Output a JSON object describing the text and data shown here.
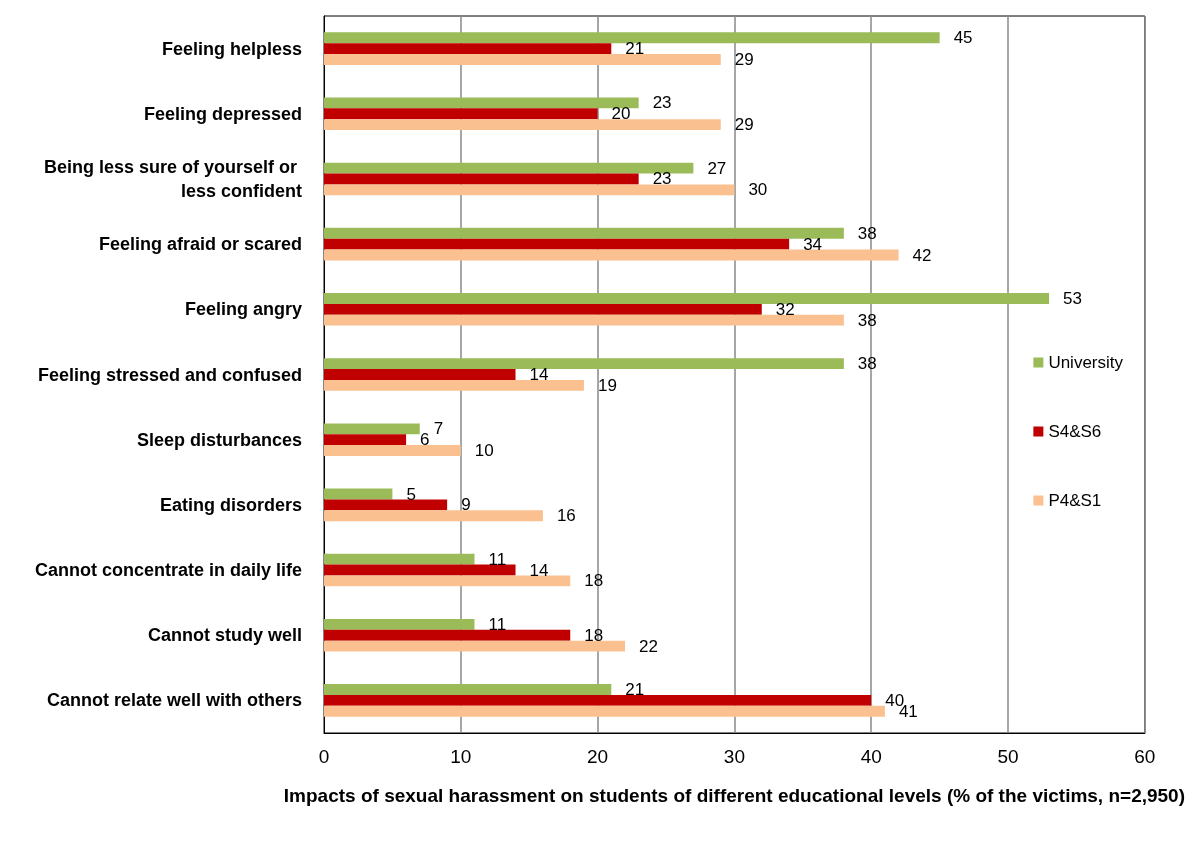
{
  "chart_data": {
    "type": "bar",
    "orientation": "horizontal",
    "xlabel": "Impacts of sexual harassment on students of different educational levels (% of the victims, n=2,950)",
    "categories": [
      "Feeling helpless",
      "Feeling depressed",
      "Being less sure of yourself or less confident",
      "Feeling afraid or scared",
      "Feeling angry",
      "Feeling stressed and confused",
      "Sleep disturbances",
      "Eating disorders",
      "Cannot concentrate in daily life",
      "Cannot study well",
      "Cannot relate well with others"
    ],
    "series": [
      {
        "name": "University",
        "color": "#9bbb59",
        "values": [
          45,
          23,
          27,
          38,
          53,
          38,
          7,
          5,
          11,
          11,
          21
        ]
      },
      {
        "name": "S4&S6",
        "color": "#c00000",
        "values": [
          21,
          20,
          23,
          34,
          32,
          14,
          6,
          9,
          14,
          18,
          40
        ]
      },
      {
        "name": "P4&S1",
        "color": "#fac090",
        "values": [
          29,
          29,
          30,
          42,
          38,
          19,
          10,
          16,
          18,
          22,
          41
        ]
      }
    ],
    "xlim": [
      0,
      60
    ],
    "xticks": [
      0,
      10,
      20,
      30,
      40,
      50,
      60
    ],
    "grid": "x",
    "legend": "right",
    "data_labels": true
  }
}
